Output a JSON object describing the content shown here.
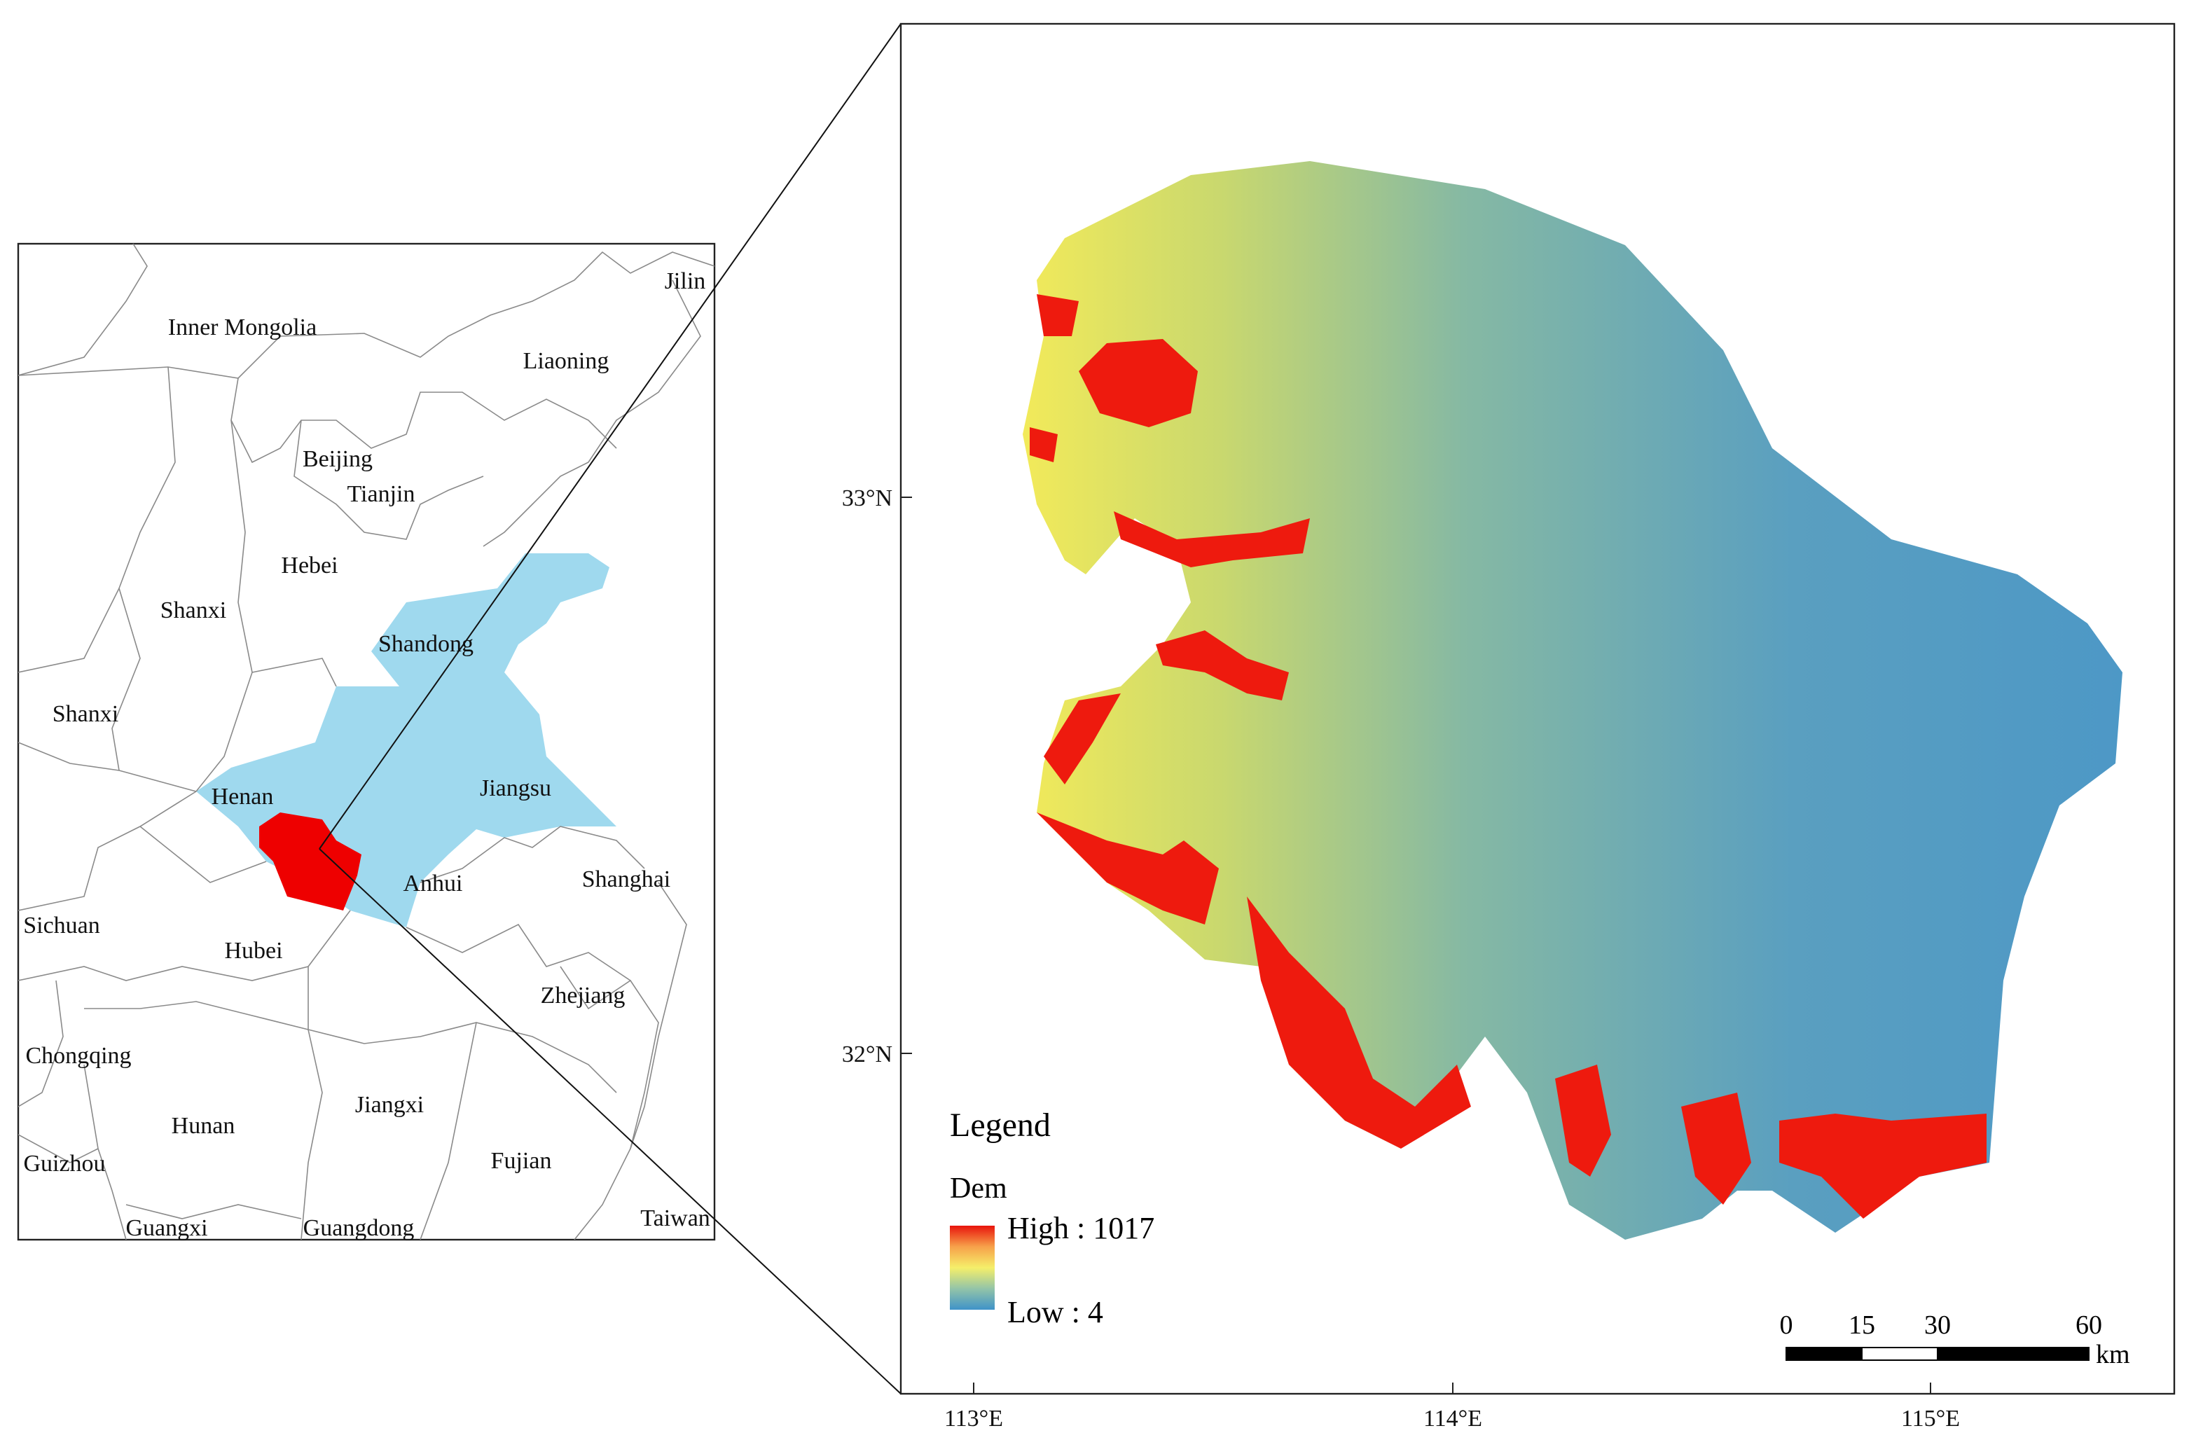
{
  "inset_map": {
    "labels": [
      "Inner Mongolia",
      "Jilin",
      "Liaoning",
      "Beijing",
      "Tianjin",
      "Hebei",
      "Shanxi",
      "Shandong",
      "Shanxi",
      "Henan",
      "Jiangsu",
      "Anhui",
      "Shanghai",
      "Sichuan",
      "Hubei",
      "Zhejiang",
      "Chongqing",
      "Hunan",
      "Jiangxi",
      "Fujian",
      "Guizhou",
      "Guangxi",
      "Guangdong",
      "Taiwan"
    ]
  },
  "main_map": {
    "y_axis_labels": [
      "33°N",
      "32°N"
    ],
    "x_axis_labels": [
      "113°E",
      "114°E",
      "115°E"
    ]
  },
  "legend": {
    "title": "Legend",
    "layer": "Dem",
    "high": "High : 1017",
    "low": "Low : 4"
  },
  "scale_bar": {
    "ticks": [
      0,
      15,
      30,
      60
    ],
    "unit": "km"
  }
}
